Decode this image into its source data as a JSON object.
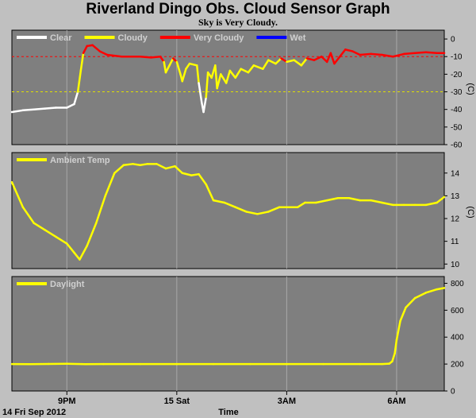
{
  "title": "Riverland Dingo Obs. Cloud Sensor Graph",
  "subtitle": "Sky is Very Cloudy.",
  "chart_data": {
    "type": "line",
    "x_label": "Time",
    "date_label": "14 Fri Sep 2012",
    "x_range_hours": [
      19.5,
      31.3
    ],
    "x_ticks": [
      {
        "label": "9PM",
        "hour": 21
      },
      {
        "label": "15 Sat",
        "hour": 24
      },
      {
        "label": "3AM",
        "hour": 27
      },
      {
        "label": "6AM",
        "hour": 30
      }
    ],
    "panels": [
      {
        "id": "sky",
        "unit": "(C)",
        "ylim": [
          -60,
          5
        ],
        "y_ticks": [
          0,
          -10,
          -20,
          -30,
          -40,
          -50,
          -60
        ],
        "y_tick_labels": [
          "0",
          "-10",
          "-20",
          "-30",
          "-40",
          "-50",
          "-60"
        ],
        "ref_lines": [
          {
            "value": -10,
            "color": "#ff0000"
          },
          {
            "value": -30,
            "color": "#e0e000"
          }
        ],
        "legend": [
          {
            "name": "Clear",
            "color": "#ffffff"
          },
          {
            "name": "Cloudy",
            "color": "#ffff00"
          },
          {
            "name": "Very Cloudy",
            "color": "#ff0000"
          },
          {
            "name": "Wet",
            "color": "#0000ff"
          }
        ],
        "thresholds": {
          "clear_below": -30,
          "very_cloudy_above": -12
        },
        "points": [
          [
            19.5,
            -41.5
          ],
          [
            19.8,
            -40.5
          ],
          [
            20.1,
            -40
          ],
          [
            20.4,
            -39.5
          ],
          [
            20.7,
            -39
          ],
          [
            21.0,
            -39
          ],
          [
            21.2,
            -37
          ],
          [
            21.3,
            -30
          ],
          [
            21.38,
            -18
          ],
          [
            21.45,
            -8
          ],
          [
            21.55,
            -4
          ],
          [
            21.7,
            -3.5
          ],
          [
            21.9,
            -7
          ],
          [
            22.1,
            -9
          ],
          [
            22.5,
            -10
          ],
          [
            23.0,
            -10
          ],
          [
            23.3,
            -10.5
          ],
          [
            23.55,
            -10
          ],
          [
            23.65,
            -13
          ],
          [
            23.7,
            -19
          ],
          [
            23.8,
            -15
          ],
          [
            23.9,
            -11
          ],
          [
            24.0,
            -13
          ],
          [
            24.1,
            -20
          ],
          [
            24.15,
            -24
          ],
          [
            24.25,
            -17
          ],
          [
            24.35,
            -14
          ],
          [
            24.55,
            -15
          ],
          [
            24.6,
            -25
          ],
          [
            24.68,
            -36
          ],
          [
            24.73,
            -41.5
          ],
          [
            24.8,
            -33
          ],
          [
            24.85,
            -19
          ],
          [
            24.95,
            -22
          ],
          [
            25.05,
            -15
          ],
          [
            25.1,
            -28
          ],
          [
            25.2,
            -20
          ],
          [
            25.35,
            -25
          ],
          [
            25.45,
            -18
          ],
          [
            25.6,
            -22
          ],
          [
            25.75,
            -17
          ],
          [
            25.95,
            -19
          ],
          [
            26.1,
            -15
          ],
          [
            26.35,
            -17
          ],
          [
            26.5,
            -12
          ],
          [
            26.7,
            -14
          ],
          [
            26.85,
            -11
          ],
          [
            27.0,
            -13
          ],
          [
            27.2,
            -12
          ],
          [
            27.4,
            -15
          ],
          [
            27.55,
            -11
          ],
          [
            27.75,
            -12
          ],
          [
            27.95,
            -10
          ],
          [
            28.1,
            -13
          ],
          [
            28.2,
            -8
          ],
          [
            28.3,
            -14
          ],
          [
            28.45,
            -10
          ],
          [
            28.6,
            -6
          ],
          [
            28.8,
            -7
          ],
          [
            29.0,
            -9
          ],
          [
            29.3,
            -8.5
          ],
          [
            29.6,
            -9
          ],
          [
            29.9,
            -10
          ],
          [
            30.2,
            -8.5
          ],
          [
            30.5,
            -8
          ],
          [
            30.8,
            -7.5
          ],
          [
            31.1,
            -8
          ],
          [
            31.3,
            -8
          ]
        ]
      },
      {
        "id": "ambient",
        "legend": [
          {
            "name": "Ambient Temp",
            "color": "#ffff00"
          }
        ],
        "ylim": [
          9.8,
          14.9
        ],
        "y_ticks": [
          10,
          11,
          12,
          13,
          14
        ],
        "y_tick_labels": [
          "10",
          "11",
          "12",
          "13",
          "14"
        ],
        "unit": "(C)",
        "points": [
          [
            19.5,
            13.6
          ],
          [
            19.8,
            12.5
          ],
          [
            20.1,
            11.8
          ],
          [
            20.4,
            11.5
          ],
          [
            20.7,
            11.2
          ],
          [
            21.0,
            10.9
          ],
          [
            21.2,
            10.5
          ],
          [
            21.35,
            10.2
          ],
          [
            21.55,
            10.8
          ],
          [
            21.8,
            11.8
          ],
          [
            22.05,
            13.0
          ],
          [
            22.3,
            14.0
          ],
          [
            22.55,
            14.35
          ],
          [
            22.8,
            14.4
          ],
          [
            23.0,
            14.35
          ],
          [
            23.2,
            14.4
          ],
          [
            23.45,
            14.4
          ],
          [
            23.7,
            14.2
          ],
          [
            23.95,
            14.3
          ],
          [
            24.15,
            14.0
          ],
          [
            24.4,
            13.9
          ],
          [
            24.6,
            13.95
          ],
          [
            24.8,
            13.5
          ],
          [
            25.0,
            12.8
          ],
          [
            25.3,
            12.7
          ],
          [
            25.6,
            12.5
          ],
          [
            25.9,
            12.3
          ],
          [
            26.2,
            12.2
          ],
          [
            26.5,
            12.3
          ],
          [
            26.8,
            12.5
          ],
          [
            27.1,
            12.5
          ],
          [
            27.3,
            12.5
          ],
          [
            27.5,
            12.7
          ],
          [
            27.8,
            12.7
          ],
          [
            28.1,
            12.8
          ],
          [
            28.4,
            12.9
          ],
          [
            28.7,
            12.9
          ],
          [
            29.0,
            12.8
          ],
          [
            29.3,
            12.8
          ],
          [
            29.6,
            12.7
          ],
          [
            29.9,
            12.6
          ],
          [
            30.2,
            12.6
          ],
          [
            30.5,
            12.6
          ],
          [
            30.8,
            12.6
          ],
          [
            31.1,
            12.7
          ],
          [
            31.3,
            12.95
          ]
        ]
      },
      {
        "id": "daylight",
        "legend": [
          {
            "name": "Daylight",
            "color": "#ffff00"
          }
        ],
        "ylim": [
          0,
          850
        ],
        "y_ticks": [
          0,
          200,
          400,
          600,
          800
        ],
        "y_tick_labels": [
          "0",
          "200",
          "400",
          "600",
          "800"
        ],
        "unit": "",
        "points": [
          [
            19.5,
            200
          ],
          [
            20.0,
            199
          ],
          [
            20.5,
            201
          ],
          [
            21.0,
            202
          ],
          [
            21.5,
            199
          ],
          [
            22.0,
            200
          ],
          [
            23.0,
            200
          ],
          [
            24.0,
            200
          ],
          [
            25.0,
            200
          ],
          [
            26.0,
            200
          ],
          [
            27.0,
            200
          ],
          [
            28.0,
            200
          ],
          [
            29.0,
            200
          ],
          [
            29.6,
            200
          ],
          [
            29.8,
            203
          ],
          [
            29.88,
            220
          ],
          [
            29.95,
            280
          ],
          [
            30.0,
            380
          ],
          [
            30.1,
            520
          ],
          [
            30.25,
            620
          ],
          [
            30.5,
            690
          ],
          [
            30.8,
            730
          ],
          [
            31.1,
            755
          ],
          [
            31.3,
            765
          ]
        ]
      }
    ]
  }
}
